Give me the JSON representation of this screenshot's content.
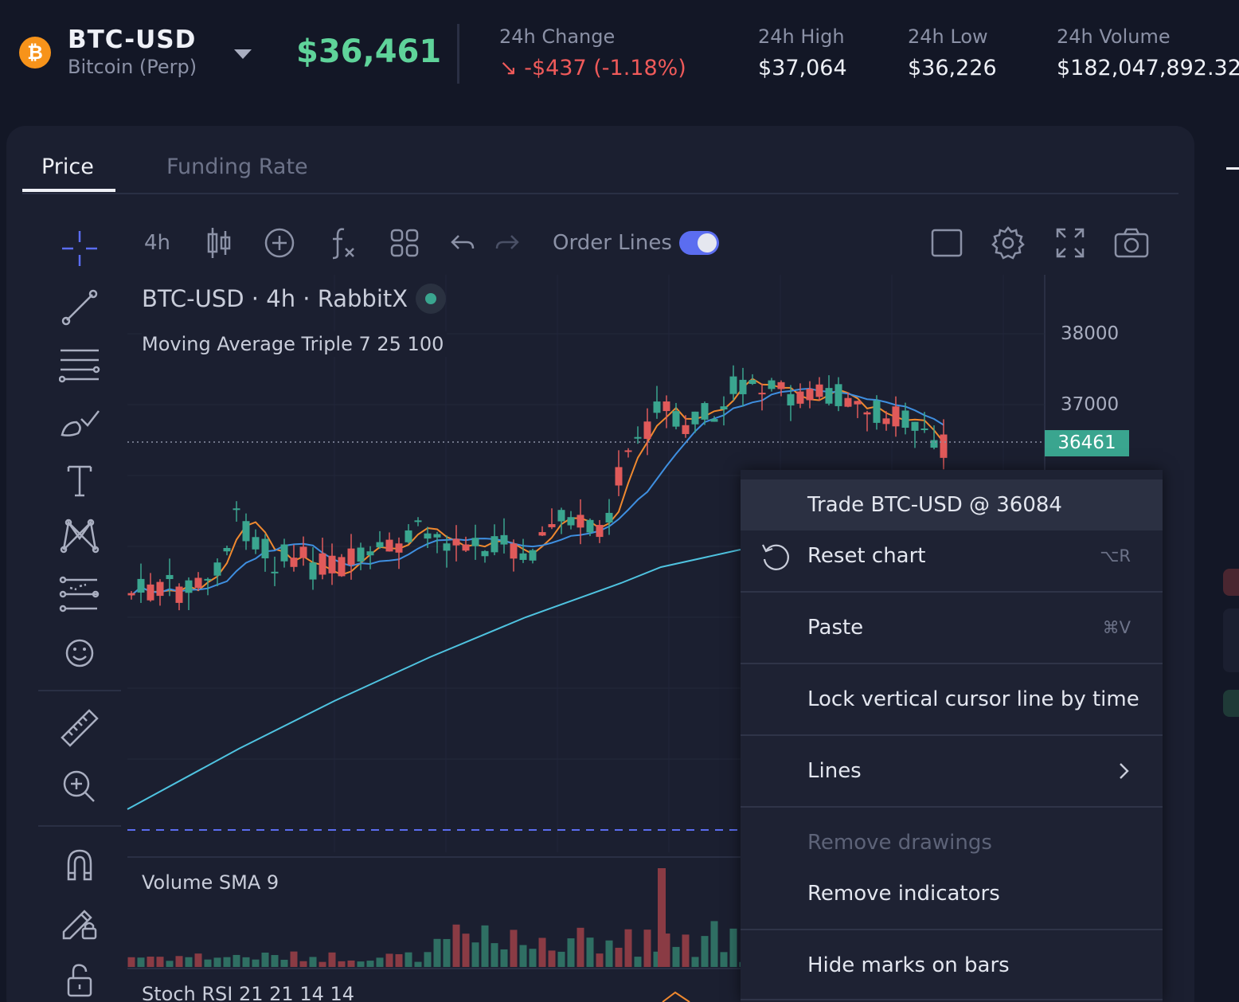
{
  "header": {
    "symbol": "BTC-USD",
    "symbol_sub": "Bitcoin (Perp)",
    "coin_glyph": "₿",
    "price": "$36,461",
    "stats": [
      {
        "label": "24h Change",
        "value": "↘  -$437  (-1.18%)",
        "negative": true
      },
      {
        "label": "24h High",
        "value": "$37,064"
      },
      {
        "label": "24h Low",
        "value": "$36,226"
      },
      {
        "label": "24h Volume",
        "value": "$182,047,892.32"
      }
    ]
  },
  "tabs": [
    {
      "label": "Price",
      "active": true
    },
    {
      "label": "Funding Rate",
      "active": false
    }
  ],
  "toolbar": {
    "interval": "4h",
    "order_lines_label": "Order Lines",
    "order_lines_on": true
  },
  "chart": {
    "legend_title": "BTC-USD · 4h · RabbitX",
    "ma_label": "Moving Average Triple 7 25 100",
    "volume_label": "Volume SMA 9",
    "rsi_label": "Stoch RSI 21 21 14 14",
    "axis_labels": [
      "38000",
      "37000"
    ],
    "last_price": "36461"
  },
  "context_menu": {
    "items": [
      {
        "label": "Trade BTC-USD @ 36084",
        "shortcut": "",
        "highlighted": true
      },
      {
        "label": "Reset chart",
        "shortcut": "⌥R"
      },
      {
        "label": "Paste",
        "shortcut": "⌘V"
      },
      {
        "label": "Lock vertical cursor line by time",
        "shortcut": ""
      },
      {
        "label": "Lines",
        "shortcut": "",
        "submenu": true
      },
      {
        "label": "Remove drawings",
        "shortcut": "",
        "disabled": true
      },
      {
        "label": "Remove indicators",
        "shortcut": ""
      },
      {
        "label": "Hide marks on bars",
        "shortcut": ""
      }
    ]
  },
  "colors": {
    "up": "#3aa58f",
    "down": "#e05a5a",
    "ma7": "#f0892f",
    "ma25": "#3f8fe0",
    "ma100": "#4fc3e0",
    "accent": "#5b6df0"
  }
}
